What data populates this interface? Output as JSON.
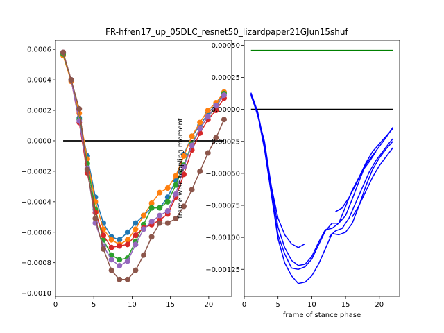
{
  "figure": {
    "title": "FR-hfren17_up_05DLC_resnet50_lizardpaper21GJun15shuf"
  },
  "chart_data": [
    {
      "type": "line",
      "title": "",
      "xlabel": "",
      "ylabel": "",
      "xlim": [
        0,
        23
      ],
      "ylim": [
        -0.00102,
        0.00066
      ],
      "xticks": [
        0,
        5,
        10,
        15,
        20
      ],
      "yticks": [
        -0.001,
        -0.0008,
        -0.0006,
        -0.0004,
        -0.0002,
        0.0,
        0.0002,
        0.0004,
        0.0006
      ],
      "ytick_labels": [
        "−0.0010",
        "−0.0008",
        "−0.0006",
        "−0.0004",
        "−0.0002",
        "0.0000",
        "0.0002",
        "0.0004",
        "0.0006"
      ],
      "markers": true,
      "reference_line": {
        "y": 0.0,
        "x": [
          1,
          22
        ],
        "color": "#000000"
      },
      "series": [
        {
          "color": "#1f77b4",
          "x": [
            1,
            2.05,
            3.1,
            4.15,
            5.2,
            6.25,
            7.3,
            8.35,
            9.4,
            10.45,
            11.5,
            12.55,
            13.6,
            14.65,
            15.7,
            16.75,
            17.8,
            18.85,
            19.9,
            20.95,
            22
          ],
          "values": [
            0.00057,
            0.0004,
            0.00015,
            -0.0001,
            -0.00037,
            -0.00054,
            -0.00063,
            -0.00065,
            -0.0006,
            -0.00054,
            -0.00049,
            -0.00044,
            -0.00044,
            -0.00037,
            -0.00026,
            -9e-05,
            3e-05,
            0.0001,
            0.00018,
            0.00024,
            0.00032
          ]
        },
        {
          "color": "#ff7f0e",
          "x": [
            1,
            2.05,
            3.1,
            4.15,
            5.2,
            6.25,
            7.3,
            8.35,
            9.4,
            10.45,
            11.5,
            12.55,
            13.6,
            14.65,
            15.7,
            16.75,
            17.8,
            18.85,
            19.9,
            20.95,
            22
          ],
          "values": [
            0.00056,
            0.00039,
            0.00018,
            -0.00012,
            -0.0004,
            -0.00058,
            -0.00065,
            -0.00068,
            -0.00065,
            -0.00058,
            -0.00049,
            -0.00041,
            -0.00034,
            -0.00031,
            -0.00023,
            -0.0001,
            3e-05,
            0.00012,
            0.0002,
            0.00025,
            0.00032
          ]
        },
        {
          "color": "#2ca02c",
          "x": [
            1,
            2.05,
            3.1,
            4.15,
            5.2,
            6.25,
            7.3,
            8.35,
            9.4,
            10.45,
            11.5,
            12.55,
            13.6,
            14.65,
            15.7,
            16.75,
            17.8,
            18.85,
            19.9,
            20.95,
            22
          ],
          "values": [
            0.00057,
            0.0004,
            0.00014,
            -0.00015,
            -0.00045,
            -0.00065,
            -0.00075,
            -0.00078,
            -0.00077,
            -0.00066,
            -0.00055,
            -0.00044,
            -0.00044,
            -0.0004,
            -0.00029,
            -0.00016,
            -2e-05,
            8e-05,
            0.00016,
            0.00022,
            0.00031
          ]
        },
        {
          "color": "#d62728",
          "x": [
            1,
            2.05,
            3.1,
            4.15,
            5.2,
            6.25,
            7.3,
            8.35,
            9.4,
            10.45,
            11.5,
            12.55,
            13.6,
            14.65,
            15.7,
            16.75,
            17.8,
            18.85,
            19.9,
            20.95,
            22
          ],
          "values": [
            0.00058,
            0.0004,
            0.00012,
            -0.00021,
            -0.00047,
            -0.00062,
            -0.0007,
            -0.00069,
            -0.00068,
            -0.00062,
            -0.00057,
            -0.00055,
            -0.00052,
            -0.00048,
            -0.00037,
            -0.00022,
            -6e-05,
            5e-05,
            0.00014,
            0.0002,
            0.00028
          ]
        },
        {
          "color": "#9467bd",
          "x": [
            1,
            2.05,
            3.1,
            4.15,
            5.2,
            6.25,
            7.3,
            8.35,
            9.4,
            10.45,
            11.5,
            12.55,
            13.6,
            14.65,
            15.7,
            16.75,
            17.8,
            18.85,
            19.9,
            20.95,
            22
          ],
          "values": [
            0.00058,
            0.0004,
            0.00013,
            -0.00018,
            -0.00054,
            -0.00069,
            -0.00078,
            -0.00082,
            -0.00079,
            -0.00068,
            -0.00058,
            -0.00053,
            -0.00049,
            -0.00046,
            -0.00035,
            -0.00017,
            -3e-05,
            8e-05,
            0.00016,
            0.00023,
            0.0003
          ]
        },
        {
          "color": "#8c564b",
          "x": [
            1,
            2.05,
            3.1,
            4.15,
            5.2,
            6.25,
            7.3,
            8.35,
            9.4,
            10.45,
            11.5,
            12.55,
            13.6,
            14.65,
            15.7,
            16.75,
            17.8,
            18.85,
            19.9,
            20.95,
            22
          ],
          "values": [
            0.00058,
            0.0004,
            0.00021,
            -0.00019,
            -0.00051,
            -0.00071,
            -0.00085,
            -0.00091,
            -0.00091,
            -0.00085,
            -0.00075,
            -0.00063,
            -0.00054,
            -0.00054,
            -0.00051,
            -0.00043,
            -0.00032,
            -0.0002,
            -8e-05,
            2e-05,
            0.00014
          ]
        }
      ]
    },
    {
      "type": "line",
      "title": "",
      "xlabel": "frame of stance phase",
      "ylabel": "frame wise toppling moment",
      "xlim": [
        0,
        23
      ],
      "ylim": [
        -0.00146,
        0.00054
      ],
      "xticks": [
        0,
        5,
        10,
        15,
        20
      ],
      "yticks": [
        -0.00125,
        -0.001,
        -0.00075,
        -0.0005,
        -0.00025,
        0.0,
        0.00025,
        0.0005
      ],
      "ytick_labels": [
        "−0.00125",
        "−0.00100",
        "−0.00075",
        "−0.00050",
        "−0.00025",
        "0.00000",
        "0.00025",
        "0.00050"
      ],
      "markers": false,
      "reference_lines": [
        {
          "y": 0.00046,
          "x": [
            1,
            22
          ],
          "color": "#008000"
        },
        {
          "y": 0.0,
          "x": [
            1,
            22
          ],
          "color": "#000000"
        }
      ],
      "series": [
        {
          "color": "#0000ff",
          "x": [
            1,
            2,
            3,
            4,
            5,
            6,
            7,
            8,
            9
          ],
          "values": [
            0.00012,
            -5e-05,
            -0.00025,
            -0.0006,
            -0.00085,
            -0.00098,
            -0.00105,
            -0.00108,
            -0.00105
          ]
        },
        {
          "color": "#0000ff",
          "x": [
            1,
            2,
            3,
            4,
            5,
            6,
            7,
            8,
            9,
            10,
            11,
            12,
            13,
            14,
            15,
            16,
            17,
            18,
            19,
            20,
            21,
            22
          ],
          "values": [
            0.00013,
            -2e-05,
            -0.00028,
            -0.0006,
            -0.00092,
            -0.00108,
            -0.00118,
            -0.00122,
            -0.00121,
            -0.00115,
            -0.00104,
            -0.00094,
            -0.00093,
            -0.00089,
            -0.00076,
            -0.00063,
            -0.00053,
            -0.00042,
            -0.00033,
            -0.00027,
            -0.00021,
            -0.00015
          ]
        },
        {
          "color": "#0000ff",
          "x": [
            1,
            2,
            3,
            4,
            5,
            6,
            7,
            8,
            9,
            10,
            11,
            12,
            13,
            14,
            15,
            16,
            17,
            18,
            19,
            20,
            21,
            22
          ],
          "values": [
            0.00012,
            -3e-05,
            -0.00029,
            -0.00064,
            -0.00098,
            -0.00113,
            -0.00124,
            -0.00125,
            -0.00123,
            -0.00117,
            -0.00106,
            -0.00095,
            -0.00089,
            -0.00089,
            -0.00083,
            -0.0007,
            -0.00056,
            -0.00043,
            -0.00036,
            -0.00029,
            -0.00022,
            -0.00014
          ]
        },
        {
          "color": "#0000ff",
          "x": [
            1,
            2,
            3,
            4,
            5,
            6,
            7,
            8,
            9,
            10,
            11,
            12,
            13,
            14,
            15,
            16,
            17,
            18,
            19,
            20,
            21,
            22
          ],
          "values": [
            0.00011,
            -4e-05,
            -0.00031,
            -0.00066,
            -0.00101,
            -0.0012,
            -0.0013,
            -0.00136,
            -0.00135,
            -0.0013,
            -0.00121,
            -0.00109,
            -0.00097,
            -0.00098,
            -0.00096,
            -0.00089,
            -0.00075,
            -0.0006,
            -0.00047,
            -0.00038,
            -0.00031,
            -0.00025
          ]
        },
        {
          "color": "#0000ff",
          "x": [
            13.5,
            14.5,
            15.5,
            16.5,
            17.5,
            18.5,
            19.5
          ],
          "values": [
            -0.0008,
            -0.00077,
            -0.00069,
            -0.00059,
            -0.00048,
            -0.00041,
            -0.00033
          ]
        },
        {
          "color": "#0000ff",
          "x": [
            12.5,
            13.5,
            14.5,
            15.5,
            16.5,
            17.5,
            18.5,
            19.5,
            20.5,
            21.5,
            22
          ],
          "values": [
            -0.001,
            -0.00095,
            -0.00093,
            -0.00085,
            -0.00073,
            -0.00061,
            -0.00049,
            -0.0004,
            -0.00033,
            -0.00026,
            -0.00023
          ]
        },
        {
          "color": "#0000ff",
          "x": [
            16,
            17,
            18,
            19,
            20,
            21,
            22
          ],
          "values": [
            -0.00084,
            -0.00075,
            -0.00064,
            -0.00053,
            -0.00044,
            -0.00037,
            -0.0003
          ]
        }
      ]
    }
  ]
}
